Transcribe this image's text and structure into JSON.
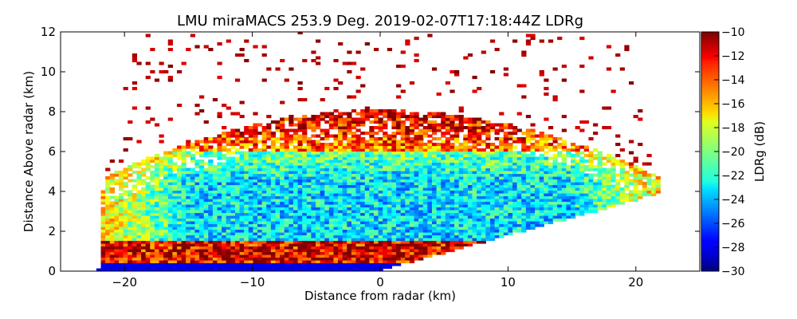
{
  "chart_data": {
    "type": "heatmap",
    "title": "LMU miraMACS 253.9 Deg. 2019-02-07T17:18:44Z  LDRg",
    "xlabel": "Distance from radar (km)",
    "ylabel": "Distance Above radar  (km)",
    "xlim": [
      -25,
      25
    ],
    "ylim": [
      0,
      12
    ],
    "xticks": [
      -20,
      -10,
      0,
      10,
      20
    ],
    "xtick_labels": [
      "−20",
      "−10",
      "0",
      "10",
      "20"
    ],
    "yticks": [
      0,
      2,
      4,
      6,
      8,
      10,
      12
    ],
    "ytick_labels": [
      "0",
      "2",
      "4",
      "6",
      "8",
      "10",
      "12"
    ],
    "colorbar": {
      "label": "LDRg (dB)",
      "range": [
        -30,
        -10
      ],
      "colormap": "jet",
      "ticks": [
        -30,
        -28,
        -26,
        -24,
        -22,
        -20,
        -18,
        -16,
        -14,
        -12,
        -10
      ],
      "tick_labels": [
        "−30",
        "−28",
        "−26",
        "−24",
        "−22",
        "−20",
        "−18",
        "−16",
        "−14",
        "−12",
        "−10"
      ]
    },
    "scan": {
      "max_range_km": 22.2,
      "min_elevation_left_deg": 0,
      "min_elevation_right_deg": 10,
      "cloud_top_km": 8,
      "sparse_echo_top_km": 12
    },
    "layers": [
      {
        "name": "surface-clutter",
        "z_km": [
          0,
          0.4
        ],
        "ldr_db": -28
      },
      {
        "name": "melting-layer",
        "z_km": [
          0.4,
          1.5
        ],
        "ldr_db": -12
      },
      {
        "name": "ice-cloud-core",
        "z_km": [
          1.5,
          6
        ],
        "ldr_db": -23
      },
      {
        "name": "cloud-top-edge",
        "z_km": [
          6,
          8
        ],
        "ldr_db": -15
      },
      {
        "name": "sparse-echoes",
        "z_km": [
          8,
          12
        ],
        "ldr_db": -10
      }
    ]
  }
}
